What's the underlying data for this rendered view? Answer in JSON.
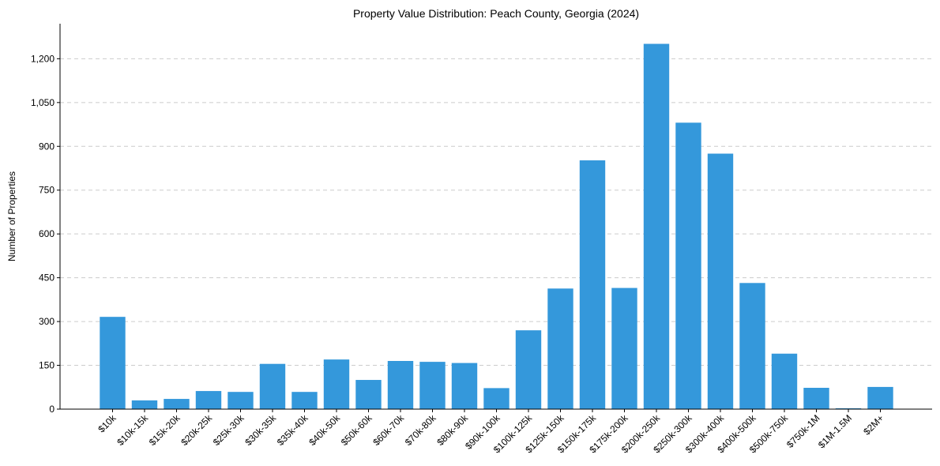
{
  "chart_data": {
    "type": "bar",
    "title": "Property Value Distribution: Peach County, Georgia (2024)",
    "xlabel": "",
    "ylabel": "Number of Properties",
    "ylim": [
      0,
      1320
    ],
    "yticks": [
      0,
      150,
      300,
      450,
      600,
      750,
      900,
      1050,
      1200
    ],
    "ytick_labels": [
      "0",
      "150",
      "300",
      "450",
      "600",
      "750",
      "900",
      "1,050",
      "1,200"
    ],
    "grid": "y-dashed",
    "bar_color": "#3498db",
    "categories": [
      "$10k",
      "$10k-15k",
      "$15k-20k",
      "$20k-25k",
      "$25k-30k",
      "$30k-35k",
      "$35k-40k",
      "$40k-50k",
      "$50k-60k",
      "$60k-70k",
      "$70k-80k",
      "$80k-90k",
      "$90k-100k",
      "$100k-125k",
      "$125k-150k",
      "$150k-175k",
      "$175k-200k",
      "$200k-250k",
      "$250k-300k",
      "$300k-400k",
      "$400k-500k",
      "$500k-750k",
      "$750k-1M",
      "$1M-1.5M",
      "$2M+"
    ],
    "values": [
      316,
      30,
      35,
      62,
      59,
      155,
      59,
      170,
      100,
      165,
      162,
      158,
      72,
      270,
      413,
      852,
      415,
      1251,
      981,
      875,
      432,
      190,
      73,
      3,
      76
    ]
  }
}
